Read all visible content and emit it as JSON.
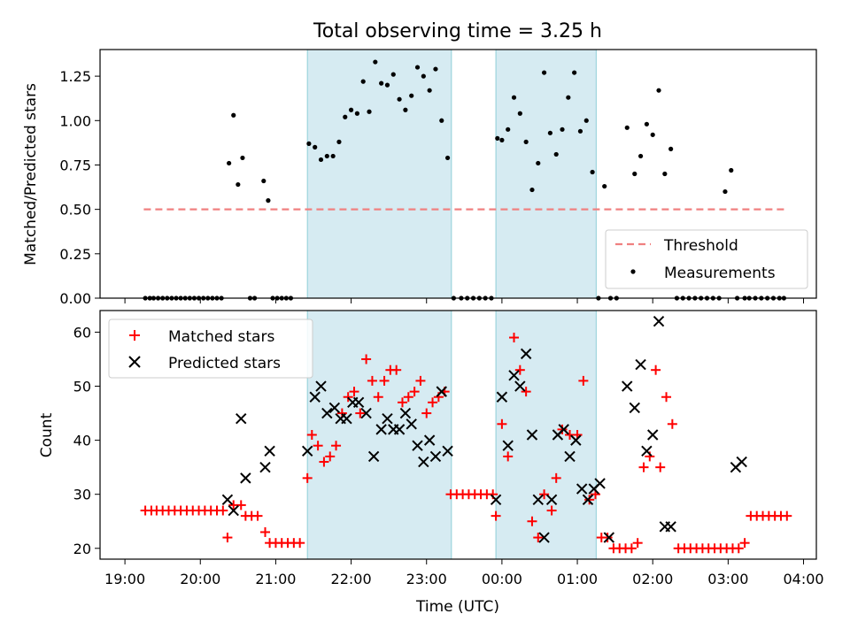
{
  "title": "Total observing time = 3.25 h",
  "chart_data": [
    {
      "type": "scatter",
      "ylabel": "Matched/Predicted stars",
      "xlabel": "",
      "x_axis": "time (UTC), hours since 19:00",
      "xlim": [
        -0.33,
        9.17
      ],
      "ylim": [
        0,
        1.4
      ],
      "yticks": [
        "0.00",
        "0.25",
        "0.50",
        "0.75",
        "1.00",
        "1.25"
      ],
      "yticks_values": [
        0,
        0.25,
        0.5,
        0.75,
        1.0,
        1.25
      ],
      "shaded_intervals": [
        [
          2.42,
          4.33
        ],
        [
          4.92,
          6.25
        ]
      ],
      "threshold": {
        "name": "Threshold",
        "value": 0.5,
        "x_range": [
          0.25,
          8.75
        ],
        "color": "#f08080"
      },
      "legend": {
        "position": "lower-right",
        "entries": [
          "Threshold",
          "Measurements"
        ]
      },
      "series": [
        {
          "name": "Measurements",
          "color": "#000000",
          "x": [
            0.27,
            0.33,
            0.38,
            0.44,
            0.5,
            0.56,
            0.62,
            0.68,
            0.74,
            0.8,
            0.86,
            0.92,
            0.98,
            1.04,
            1.1,
            1.16,
            1.22,
            1.28,
            1.38,
            1.44,
            1.5,
            1.56,
            1.66,
            1.72,
            1.84,
            1.9,
            1.96,
            2.02,
            2.08,
            2.14,
            2.2,
            2.44,
            2.52,
            2.6,
            2.68,
            2.76,
            2.84,
            2.92,
            3.0,
            3.08,
            3.16,
            3.24,
            3.32,
            3.4,
            3.48,
            3.56,
            3.64,
            3.72,
            3.8,
            3.88,
            3.96,
            4.04,
            4.12,
            4.2,
            4.28,
            4.36,
            4.46,
            4.54,
            4.62,
            4.7,
            4.78,
            4.86,
            4.94,
            5.0,
            5.08,
            5.16,
            5.24,
            5.32,
            5.4,
            5.48,
            5.56,
            5.64,
            5.72,
            5.8,
            5.88,
            5.96,
            6.04,
            6.12,
            6.2,
            6.28,
            6.36,
            6.44,
            6.52,
            6.66,
            6.76,
            6.84,
            6.92,
            7.0,
            7.08,
            7.16,
            7.24,
            7.32,
            7.4,
            7.48,
            7.56,
            7.64,
            7.72,
            7.8,
            7.88,
            7.96,
            8.04,
            8.12,
            8.22,
            8.28,
            8.36,
            8.44,
            8.52,
            8.6,
            8.68,
            8.74
          ],
          "y": [
            0,
            0,
            0,
            0,
            0,
            0,
            0,
            0,
            0,
            0,
            0,
            0,
            0,
            0,
            0,
            0,
            0,
            0,
            0.76,
            1.03,
            0.64,
            0.79,
            0,
            0,
            0.66,
            0.55,
            0,
            0,
            0,
            0,
            0,
            0.87,
            0.85,
            0.78,
            0.8,
            0.8,
            0.88,
            1.02,
            1.06,
            1.04,
            1.22,
            1.05,
            1.33,
            1.21,
            1.2,
            1.26,
            1.12,
            1.06,
            1.14,
            1.3,
            1.25,
            1.17,
            1.29,
            1.0,
            0.79,
            0,
            0,
            0,
            0,
            0,
            0,
            0,
            0.9,
            0.89,
            0.95,
            1.13,
            1.04,
            0.88,
            0.61,
            0.76,
            1.27,
            0.93,
            0.81,
            0.95,
            1.13,
            1.27,
            0.94,
            1.0,
            0.71,
            0,
            0.63,
            0,
            0,
            0.96,
            0.7,
            0.8,
            0.98,
            0.92,
            1.17,
            0.7,
            0.84,
            0,
            0,
            0,
            0,
            0,
            0,
            0,
            0,
            0.6,
            0.72,
            0,
            0,
            0,
            0,
            0,
            0,
            0,
            0,
            0
          ]
        }
      ]
    },
    {
      "type": "scatter",
      "xlabel": "Time (UTC)",
      "ylabel": "Count",
      "x_axis": "time (UTC), hours since 19:00",
      "xlim": [
        -0.33,
        9.17
      ],
      "ylim": [
        18,
        64
      ],
      "xticks": [
        "19:00",
        "20:00",
        "21:00",
        "22:00",
        "23:00",
        "00:00",
        "01:00",
        "02:00",
        "03:00",
        "04:00"
      ],
      "xticks_values": [
        0,
        1,
        2,
        3,
        4,
        5,
        6,
        7,
        8,
        9
      ],
      "yticks": [
        "20",
        "30",
        "40",
        "50",
        "60"
      ],
      "yticks_values": [
        20,
        30,
        40,
        50,
        60
      ],
      "shaded_intervals": [
        [
          2.42,
          4.33
        ],
        [
          4.92,
          6.25
        ]
      ],
      "legend": {
        "position": "upper-left",
        "entries": [
          "Matched stars",
          "Predicted stars"
        ]
      },
      "series": [
        {
          "name": "Matched stars",
          "marker": "plus",
          "color": "#ff0000",
          "x": [
            0.27,
            0.35,
            0.42,
            0.5,
            0.58,
            0.66,
            0.74,
            0.82,
            0.9,
            0.98,
            1.06,
            1.14,
            1.22,
            1.3,
            1.36,
            1.44,
            1.54,
            1.6,
            1.68,
            1.76,
            1.86,
            1.92,
            2.0,
            2.08,
            2.16,
            2.24,
            2.32,
            2.42,
            2.48,
            2.56,
            2.64,
            2.72,
            2.8,
            2.88,
            2.96,
            3.04,
            3.12,
            3.2,
            3.28,
            3.36,
            3.44,
            3.52,
            3.6,
            3.68,
            3.76,
            3.84,
            3.92,
            4.0,
            4.08,
            4.16,
            4.24,
            4.32,
            4.4,
            4.48,
            4.56,
            4.64,
            4.72,
            4.8,
            4.88,
            4.92,
            5.0,
            5.08,
            5.16,
            5.24,
            5.32,
            5.4,
            5.48,
            5.56,
            5.66,
            5.72,
            5.8,
            5.9,
            6.0,
            6.08,
            6.16,
            6.24,
            6.32,
            6.4,
            6.48,
            6.56,
            6.64,
            6.72,
            6.8,
            6.88,
            6.96,
            7.04,
            7.1,
            7.18,
            7.26,
            7.34,
            7.42,
            7.5,
            7.58,
            7.66,
            7.74,
            7.82,
            7.9,
            7.98,
            8.06,
            8.14,
            8.22,
            8.3,
            8.38,
            8.46,
            8.54,
            8.62,
            8.7,
            8.78
          ],
          "y": [
            27,
            27,
            27,
            27,
            27,
            27,
            27,
            27,
            27,
            27,
            27,
            27,
            27,
            27,
            22,
            28,
            28,
            26,
            26,
            26,
            23,
            21,
            21,
            21,
            21,
            21,
            21,
            33,
            41,
            39,
            36,
            37,
            39,
            45,
            48,
            49,
            45,
            55,
            51,
            48,
            51,
            53,
            53,
            47,
            48,
            49,
            51,
            45,
            47,
            48,
            49,
            30,
            30,
            30,
            30,
            30,
            30,
            30,
            30,
            26,
            43,
            37,
            59,
            53,
            49,
            25,
            22,
            30,
            27,
            33,
            42,
            41,
            41,
            51,
            29,
            30,
            22,
            22,
            20,
            20,
            20,
            20,
            21,
            35,
            37,
            53,
            35,
            48,
            43,
            20,
            20,
            20,
            20,
            20,
            20,
            20,
            20,
            20,
            20,
            20,
            21,
            26,
            26,
            26,
            26,
            26,
            26,
            26
          ]
        },
        {
          "name": "Predicted stars",
          "marker": "x",
          "color": "#000000",
          "x": [
            1.36,
            1.44,
            1.54,
            1.6,
            1.86,
            1.92,
            2.42,
            2.52,
            2.6,
            2.68,
            2.78,
            2.86,
            2.94,
            3.02,
            3.1,
            3.2,
            3.3,
            3.4,
            3.48,
            3.56,
            3.64,
            3.72,
            3.8,
            3.88,
            3.96,
            4.04,
            4.12,
            4.2,
            4.28,
            4.92,
            5.0,
            5.08,
            5.16,
            5.24,
            5.32,
            5.4,
            5.48,
            5.56,
            5.66,
            5.74,
            5.82,
            5.9,
            5.98,
            6.06,
            6.14,
            6.22,
            6.3,
            6.42,
            6.66,
            6.76,
            6.84,
            6.92,
            7.0,
            7.08,
            7.16,
            7.24,
            8.1,
            8.18
          ],
          "y": [
            29,
            27,
            44,
            33,
            35,
            38,
            38,
            48,
            50,
            45,
            46,
            44,
            44,
            47,
            47,
            45,
            37,
            42,
            44,
            42,
            42,
            45,
            43,
            39,
            36,
            40,
            37,
            49,
            38,
            29,
            48,
            39,
            52,
            50,
            56,
            41,
            29,
            22,
            29,
            41,
            42,
            37,
            40,
            31,
            29,
            31,
            32,
            22,
            50,
            46,
            54,
            38,
            41,
            62,
            24,
            24,
            35,
            36
          ]
        }
      ]
    }
  ]
}
